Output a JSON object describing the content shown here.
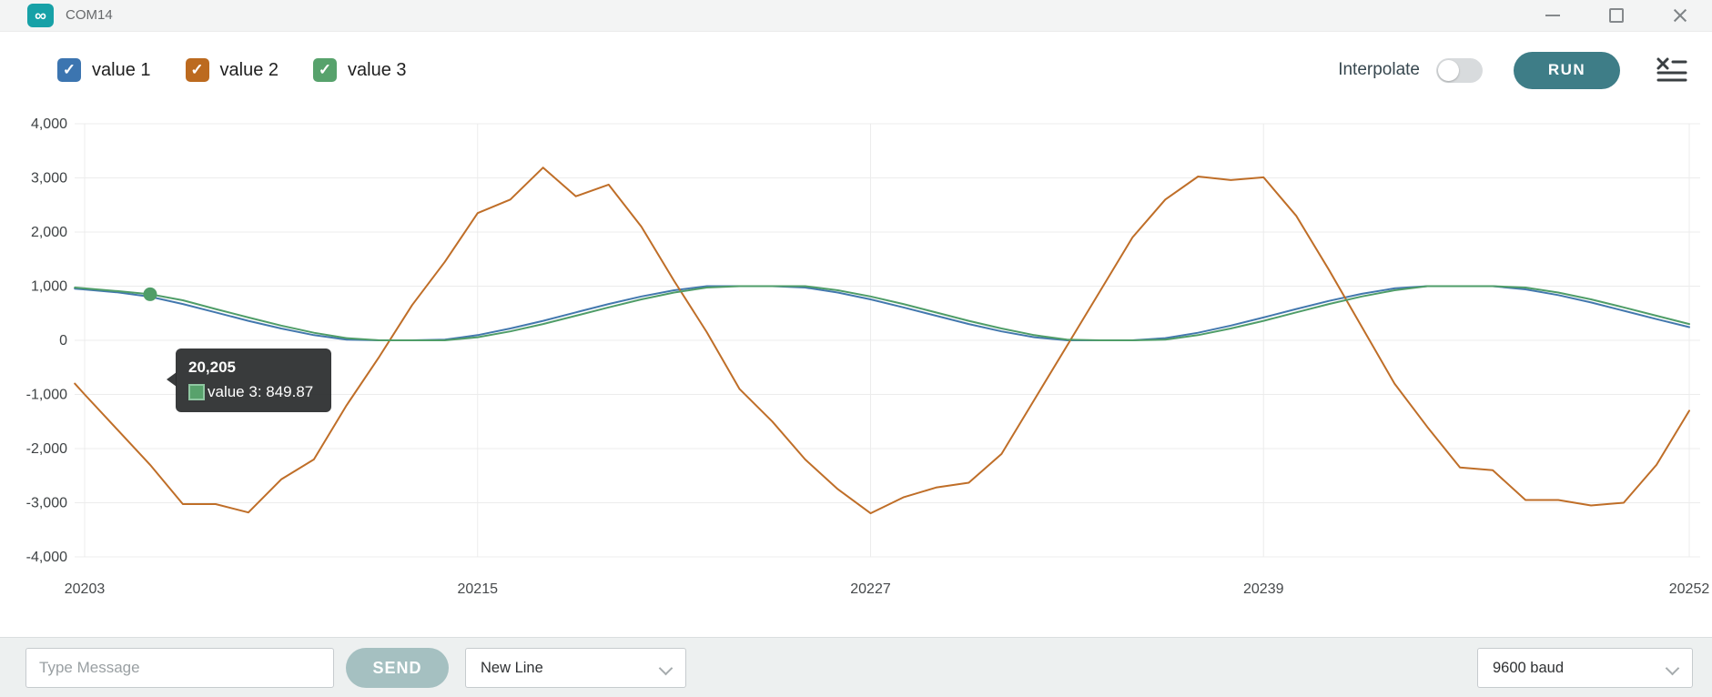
{
  "icons": {
    "check": "✓",
    "infinity": "∞"
  },
  "window": {
    "title": "COM14"
  },
  "toolbar": {
    "legend": [
      {
        "label": "value 1",
        "color": "#3c75b0",
        "checked": true
      },
      {
        "label": "value 2",
        "color": "#bc6a1f",
        "checked": true
      },
      {
        "label": "value 3",
        "color": "#57a26c",
        "checked": true
      }
    ],
    "interpolate_label": "Interpolate",
    "interpolate_on": false,
    "run_label": "RUN"
  },
  "tooltip": {
    "title": "20,205",
    "series_name": "value 3",
    "row_label": "value 3: 849.87",
    "x_value": 20205,
    "value": 849.87,
    "swatch_color": "#58a26c"
  },
  "chart_data": {
    "type": "line",
    "xlim": [
      20203,
      20252
    ],
    "ylim": [
      -4000,
      4000
    ],
    "grid": true,
    "legend_position": "top-left",
    "x_ticks": [
      {
        "value": 20203,
        "label": "20203"
      },
      {
        "value": 20215,
        "label": "20215"
      },
      {
        "value": 20227,
        "label": "20227"
      },
      {
        "value": 20239,
        "label": "20239"
      },
      {
        "value": 20252,
        "label": "20252"
      }
    ],
    "y_ticks": [
      {
        "value": 4000,
        "label": "4,000"
      },
      {
        "value": 3000,
        "label": "3,000"
      },
      {
        "value": 2000,
        "label": "2,000"
      },
      {
        "value": 1000,
        "label": "1,000"
      },
      {
        "value": 0,
        "label": "0"
      },
      {
        "value": -1000,
        "label": "-1,000"
      },
      {
        "value": -2000,
        "label": "-2,000"
      },
      {
        "value": -3000,
        "label": "-3,000"
      },
      {
        "value": -4000,
        "label": "-4,000"
      }
    ],
    "x": [
      20202.7,
      20203,
      20204,
      20205,
      20206,
      20207,
      20208,
      20209,
      20210,
      20211,
      20212,
      20213,
      20214,
      20215,
      20216,
      20217,
      20218,
      20219,
      20220,
      20221,
      20222,
      20223,
      20224,
      20225,
      20226,
      20227,
      20228,
      20229,
      20230,
      20231,
      20232,
      20233,
      20234,
      20235,
      20236,
      20237,
      20238,
      20239,
      20240,
      20241,
      20242,
      20243,
      20244,
      20245,
      20246,
      20247,
      20248,
      20249,
      20250,
      20251,
      20252
    ],
    "series": [
      {
        "name": "value 1",
        "color": "#4378ae",
        "values": [
          955,
          940,
          885,
          805,
          670,
          516,
          360,
          218,
          96,
          11,
          0,
          0,
          11,
          96,
          218,
          360,
          516,
          670,
          810,
          924,
          1000,
          1000,
          1000,
          975,
          882,
          757,
          609,
          453,
          301,
          164,
          57,
          0,
          0,
          0,
          40,
          140,
          272,
          422,
          578,
          728,
          859,
          960,
          1000,
          1000,
          1000,
          942,
          835,
          699,
          547,
          391,
          244
        ]
      },
      {
        "name": "value 2",
        "color": "#bf6e28",
        "values": [
          -800,
          -1000,
          -1650,
          -2300,
          -3025,
          -3025,
          -3180,
          -2570,
          -2200,
          -1200,
          -300,
          650,
          1450,
          2350,
          2600,
          3190,
          2660,
          2875,
          2100,
          1100,
          150,
          -900,
          -1500,
          -2200,
          -2750,
          -3195,
          -2900,
          -2720,
          -2630,
          -2100,
          -1100,
          -100,
          900,
          1900,
          2600,
          3025,
          2960,
          3010,
          2300,
          1300,
          250,
          -800,
          -1600,
          -2350,
          -2400,
          -2950,
          -2950,
          -3050,
          -3000,
          -2300,
          -1300
        ]
      },
      {
        "name": "value 3",
        "color": "#4f9d68",
        "values": [
          975,
          960,
          910,
          849.87,
          740,
          578,
          422,
          272,
          140,
          40,
          0,
          0,
          0,
          57,
          165,
          301,
          453,
          609,
          757,
          882,
          975,
          1000,
          1000,
          1000,
          924,
          810,
          670,
          515,
          360,
          218,
          96,
          11,
          0,
          0,
          11,
          96,
          218,
          360,
          516,
          670,
          810,
          924,
          1000,
          1000,
          1000,
          975,
          882,
          757,
          609,
          453,
          301
        ]
      }
    ]
  },
  "bottom_bar": {
    "message_placeholder": "Type Message",
    "send_label": "SEND",
    "line_ending": "New Line",
    "baud_rate": "9600 baud"
  }
}
